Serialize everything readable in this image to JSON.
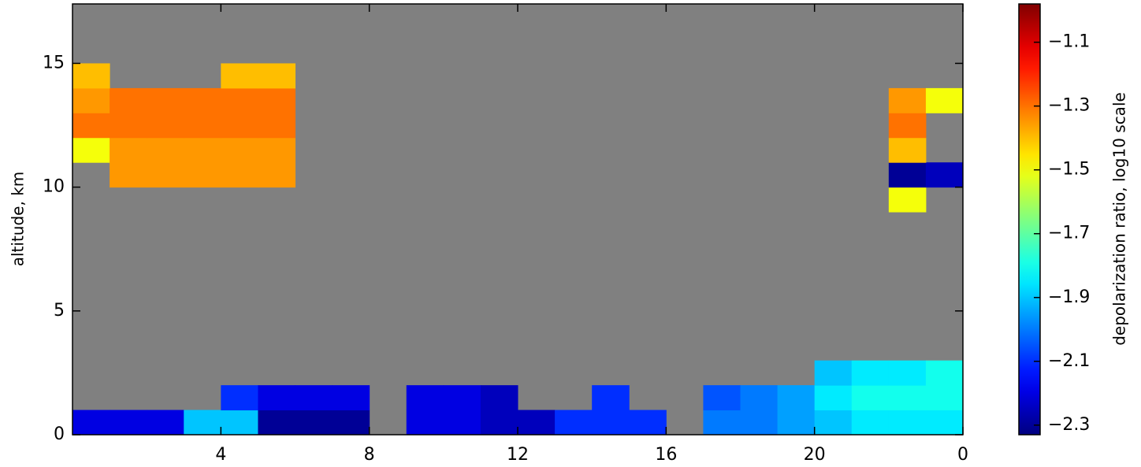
{
  "chart_data": {
    "type": "heatmap",
    "y_label": "altitude, km",
    "colorbar_label": "depolarization ratio, log10 scale",
    "background": "#808080",
    "colormap": "jet",
    "xlim": [
      0,
      24
    ],
    "xticks": [
      4,
      8,
      12,
      16,
      20,
      {
        "value": 24,
        "label": "0"
      }
    ],
    "ylim": [
      0,
      17.4
    ],
    "yticks": [
      0,
      5,
      10,
      15
    ],
    "clim": [
      -2.33,
      -0.98
    ],
    "cticks": [
      {
        "value": -1.1,
        "label": "−1.1"
      },
      {
        "value": -1.3,
        "label": "−1.3"
      },
      {
        "value": -1.5,
        "label": "−1.5"
      },
      {
        "value": -1.7,
        "label": "−1.7"
      },
      {
        "value": -1.9,
        "label": "−1.9"
      },
      {
        "value": -2.1,
        "label": "−2.1"
      },
      {
        "value": -2.3,
        "label": "−2.3"
      }
    ],
    "xbins": [
      0,
      1,
      2,
      3,
      4,
      5,
      6,
      7,
      8,
      9,
      10,
      11,
      12,
      13,
      14,
      15,
      16,
      17,
      18,
      19,
      20,
      21,
      22,
      23,
      24
    ],
    "ybins": [
      0,
      1,
      2,
      3,
      4,
      5,
      6,
      7,
      8,
      9,
      10,
      11,
      12,
      13,
      14,
      15
    ],
    "values": [
      [
        -2.2,
        -2.2,
        -2.2,
        -1.9,
        -1.9,
        -2.3,
        -2.3,
        -2.3,
        null,
        -2.2,
        -2.2,
        -2.25,
        -2.25,
        -2.1,
        -2.1,
        -2.1,
        null,
        -2.0,
        -2.0,
        -1.95,
        -1.9,
        -1.85,
        -1.85,
        -1.85
      ],
      [
        null,
        null,
        null,
        null,
        -2.1,
        -2.2,
        -2.2,
        -2.2,
        null,
        -2.2,
        -2.2,
        -2.25,
        null,
        null,
        -2.1,
        null,
        null,
        -2.05,
        -2.0,
        -1.95,
        -1.85,
        -1.8,
        -1.8,
        -1.8
      ],
      [
        null,
        null,
        null,
        null,
        null,
        null,
        null,
        null,
        null,
        null,
        null,
        null,
        null,
        null,
        null,
        null,
        null,
        null,
        null,
        null,
        -1.9,
        -1.85,
        -1.85,
        -1.8
      ],
      [
        null,
        null,
        null,
        null,
        null,
        null,
        null,
        null,
        null,
        null,
        null,
        null,
        null,
        null,
        null,
        null,
        null,
        null,
        null,
        null,
        null,
        null,
        null,
        null
      ],
      [
        null,
        null,
        null,
        null,
        null,
        null,
        null,
        null,
        null,
        null,
        null,
        null,
        null,
        null,
        null,
        null,
        null,
        null,
        null,
        null,
        null,
        null,
        null,
        null
      ],
      [
        null,
        null,
        null,
        null,
        null,
        null,
        null,
        null,
        null,
        null,
        null,
        null,
        null,
        null,
        null,
        null,
        null,
        null,
        null,
        null,
        null,
        null,
        null,
        null
      ],
      [
        null,
        null,
        null,
        null,
        null,
        null,
        null,
        null,
        null,
        null,
        null,
        null,
        null,
        null,
        null,
        null,
        null,
        null,
        null,
        null,
        null,
        null,
        null,
        null
      ],
      [
        null,
        null,
        null,
        null,
        null,
        null,
        null,
        null,
        null,
        null,
        null,
        null,
        null,
        null,
        null,
        null,
        null,
        null,
        null,
        null,
        null,
        null,
        null,
        null
      ],
      [
        null,
        null,
        null,
        null,
        null,
        null,
        null,
        null,
        null,
        null,
        null,
        null,
        null,
        null,
        null,
        null,
        null,
        null,
        null,
        null,
        null,
        null,
        null,
        null
      ],
      [
        null,
        null,
        null,
        null,
        null,
        null,
        null,
        null,
        null,
        null,
        null,
        null,
        null,
        null,
        null,
        null,
        null,
        null,
        null,
        null,
        null,
        null,
        -1.5,
        null
      ],
      [
        null,
        -1.35,
        -1.35,
        -1.35,
        -1.35,
        -1.35,
        null,
        null,
        null,
        null,
        null,
        null,
        null,
        null,
        null,
        null,
        null,
        null,
        null,
        null,
        null,
        null,
        -2.3,
        -2.25
      ],
      [
        -1.5,
        -1.35,
        -1.35,
        -1.35,
        -1.35,
        -1.35,
        null,
        null,
        null,
        null,
        null,
        null,
        null,
        null,
        null,
        null,
        null,
        null,
        null,
        null,
        null,
        null,
        -1.4,
        null
      ],
      [
        -1.3,
        -1.3,
        -1.3,
        -1.3,
        -1.3,
        -1.3,
        null,
        null,
        null,
        null,
        null,
        null,
        null,
        null,
        null,
        null,
        null,
        null,
        null,
        null,
        null,
        null,
        -1.3,
        null
      ],
      [
        -1.35,
        -1.3,
        -1.3,
        -1.3,
        -1.3,
        -1.3,
        null,
        null,
        null,
        null,
        null,
        null,
        null,
        null,
        null,
        null,
        null,
        null,
        null,
        null,
        null,
        null,
        -1.35,
        -1.5
      ],
      [
        -1.4,
        null,
        null,
        null,
        -1.4,
        -1.4,
        null,
        null,
        null,
        null,
        null,
        null,
        null,
        null,
        null,
        null,
        null,
        null,
        null,
        null,
        null,
        null,
        null,
        null
      ]
    ]
  }
}
